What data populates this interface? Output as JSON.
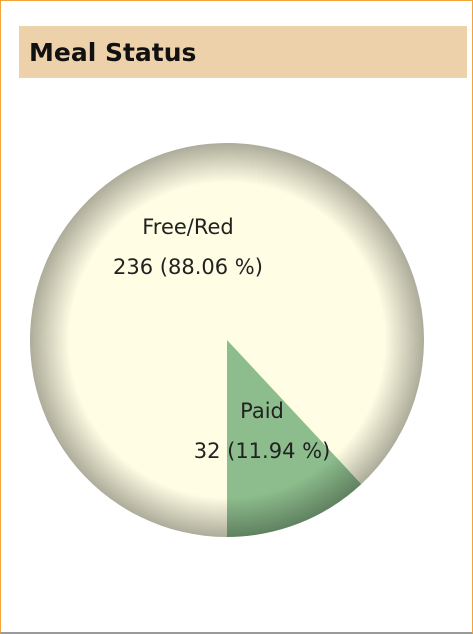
{
  "chart_data": {
    "type": "pie",
    "title": "Meal Status",
    "categories": [
      "Free/Red",
      "Paid"
    ],
    "values": [
      236,
      32
    ],
    "value_labels": [
      "236 (88.06 %)",
      "32 (11.94 %)"
    ],
    "colors": [
      "#fffde3",
      "#8dbd8d"
    ]
  }
}
